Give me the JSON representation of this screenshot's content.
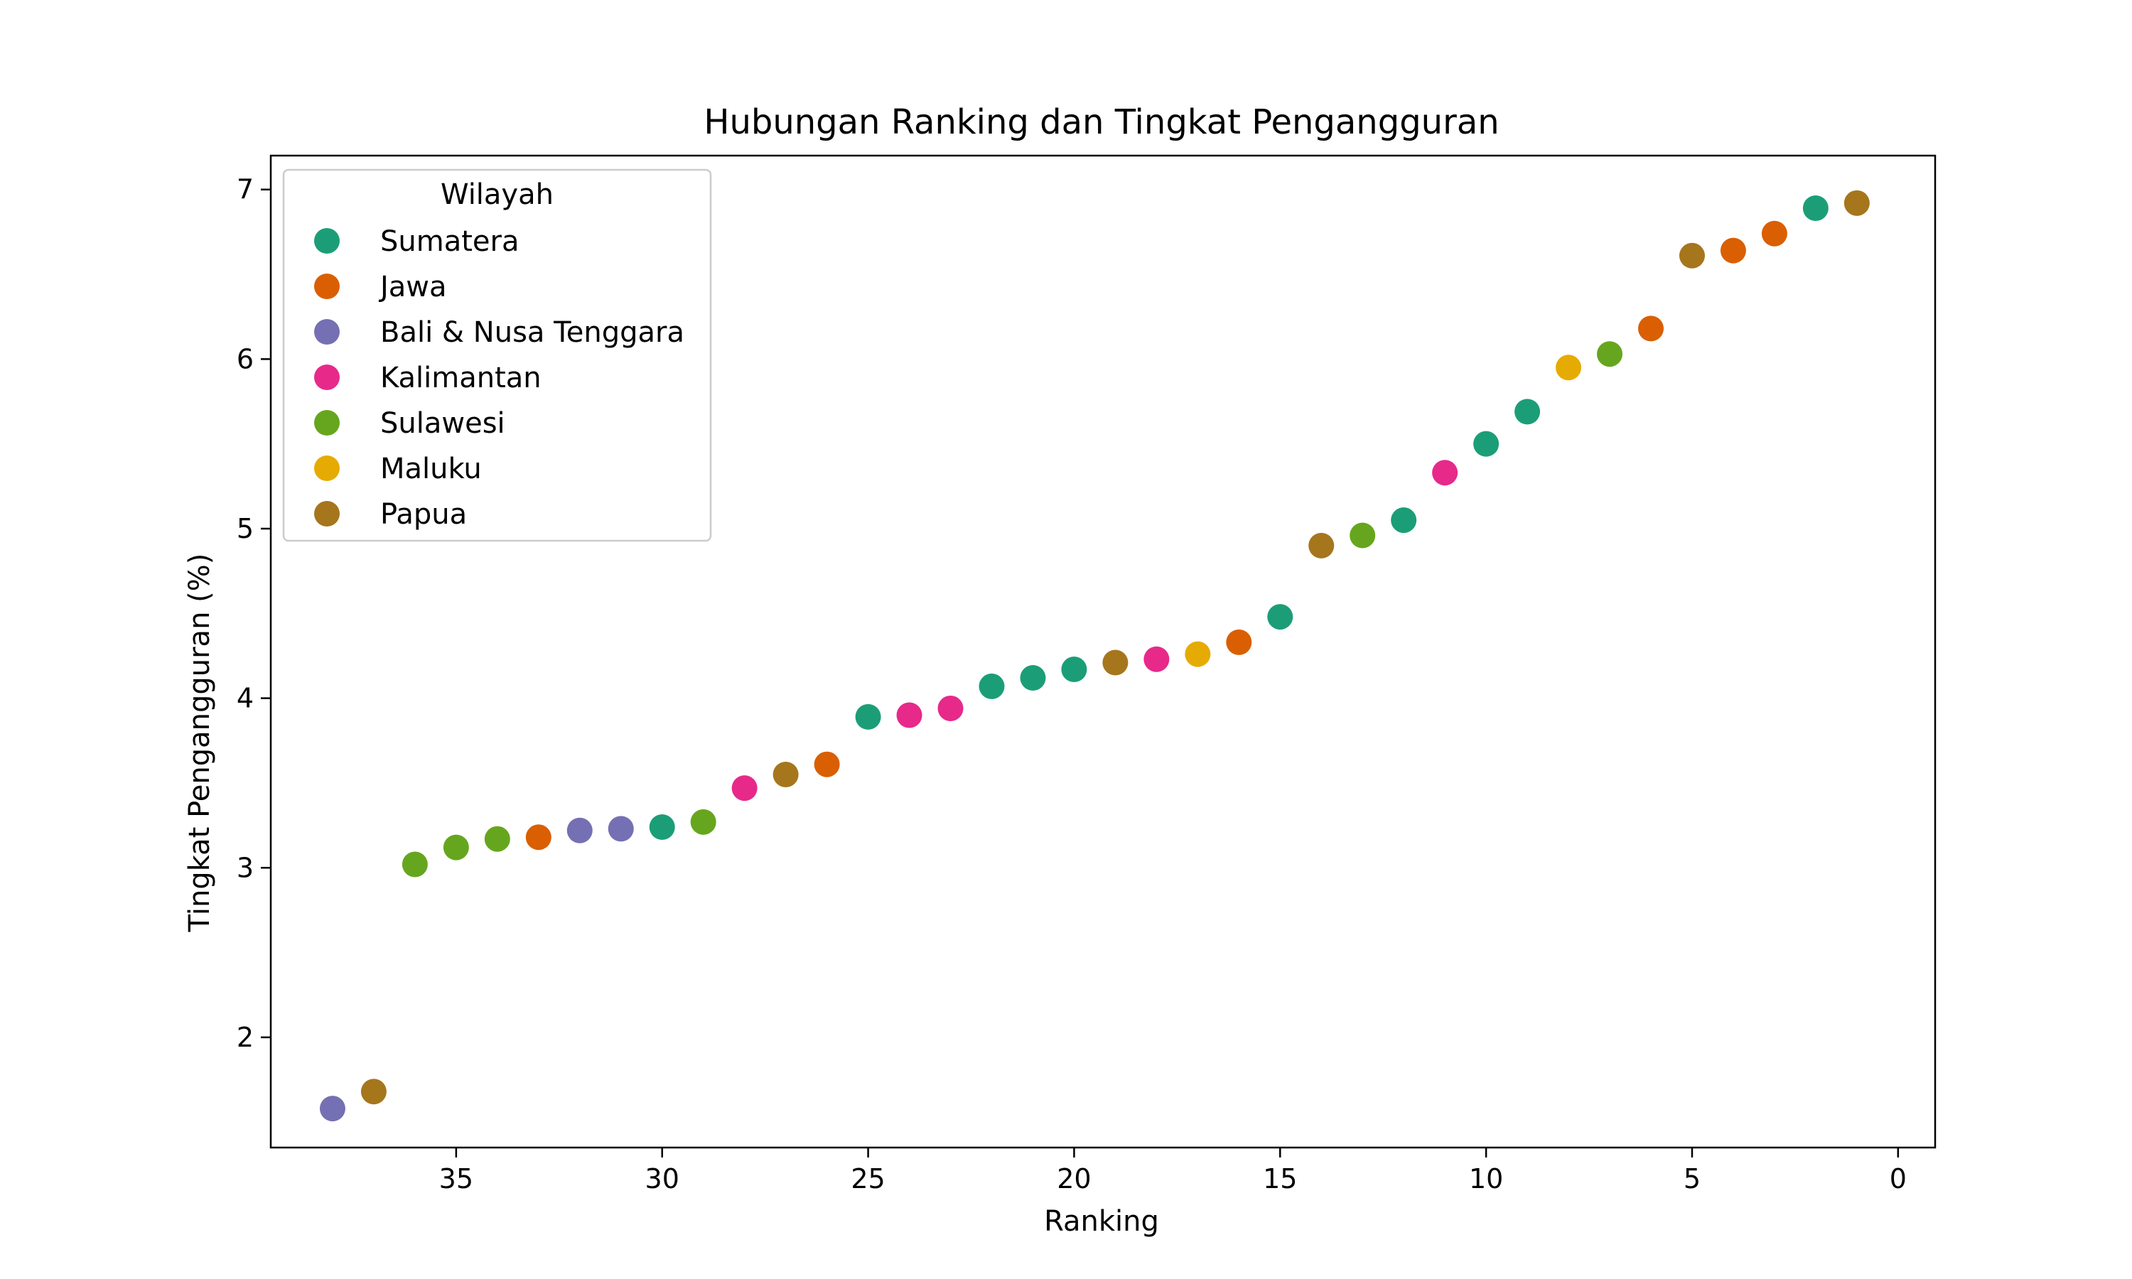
{
  "chart_data": {
    "type": "scatter",
    "title": "Hubungan Ranking dan Tingkat Pengangguran",
    "xlabel": "Ranking",
    "ylabel": "Tingkat Pengangguran (%)",
    "xlim": [
      39.5,
      -0.9
    ],
    "ylim": [
      1.35,
      7.2
    ],
    "x_inverted": true,
    "xticks": [
      35,
      30,
      25,
      20,
      15,
      10,
      5,
      0
    ],
    "yticks": [
      2,
      3,
      4,
      5,
      6,
      7
    ],
    "grid": false,
    "legend": {
      "title": "Wilayah",
      "placement": "top-left"
    },
    "series": [
      {
        "name": "Sumatera",
        "color": "#1b9e77",
        "points": [
          {
            "x": 30,
            "y": 3.24
          },
          {
            "x": 25,
            "y": 3.89
          },
          {
            "x": 22,
            "y": 4.07
          },
          {
            "x": 21,
            "y": 4.12
          },
          {
            "x": 20,
            "y": 4.17
          },
          {
            "x": 15,
            "y": 4.48
          },
          {
            "x": 12,
            "y": 5.05
          },
          {
            "x": 10,
            "y": 5.5
          },
          {
            "x": 9,
            "y": 5.69
          },
          {
            "x": 2,
            "y": 6.89
          }
        ]
      },
      {
        "name": "Jawa",
        "color": "#d95f02",
        "points": [
          {
            "x": 33,
            "y": 3.18
          },
          {
            "x": 26,
            "y": 3.61
          },
          {
            "x": 16,
            "y": 4.33
          },
          {
            "x": 6,
            "y": 6.18
          },
          {
            "x": 4,
            "y": 6.64
          },
          {
            "x": 3,
            "y": 6.74
          }
        ]
      },
      {
        "name": "Bali & Nusa Tenggara",
        "color": "#7570b3",
        "points": [
          {
            "x": 38,
            "y": 1.58
          },
          {
            "x": 32,
            "y": 3.22
          },
          {
            "x": 31,
            "y": 3.23
          }
        ]
      },
      {
        "name": "Kalimantan",
        "color": "#e7298a",
        "points": [
          {
            "x": 28,
            "y": 3.47
          },
          {
            "x": 24,
            "y": 3.9
          },
          {
            "x": 23,
            "y": 3.94
          },
          {
            "x": 18,
            "y": 4.23
          },
          {
            "x": 11,
            "y": 5.33
          }
        ]
      },
      {
        "name": "Sulawesi",
        "color": "#66a61e",
        "points": [
          {
            "x": 36,
            "y": 3.02
          },
          {
            "x": 35,
            "y": 3.12
          },
          {
            "x": 34,
            "y": 3.17
          },
          {
            "x": 29,
            "y": 3.27
          },
          {
            "x": 13,
            "y": 4.96
          },
          {
            "x": 7,
            "y": 6.03
          }
        ]
      },
      {
        "name": "Maluku",
        "color": "#e6ab02",
        "points": [
          {
            "x": 17,
            "y": 4.26
          },
          {
            "x": 8,
            "y": 5.95
          }
        ]
      },
      {
        "name": "Papua",
        "color": "#a6761d",
        "points": [
          {
            "x": 37,
            "y": 1.68
          },
          {
            "x": 27,
            "y": 3.55
          },
          {
            "x": 19,
            "y": 4.21
          },
          {
            "x": 14,
            "y": 4.9
          },
          {
            "x": 5,
            "y": 6.61
          },
          {
            "x": 1,
            "y": 6.92
          }
        ]
      }
    ]
  }
}
